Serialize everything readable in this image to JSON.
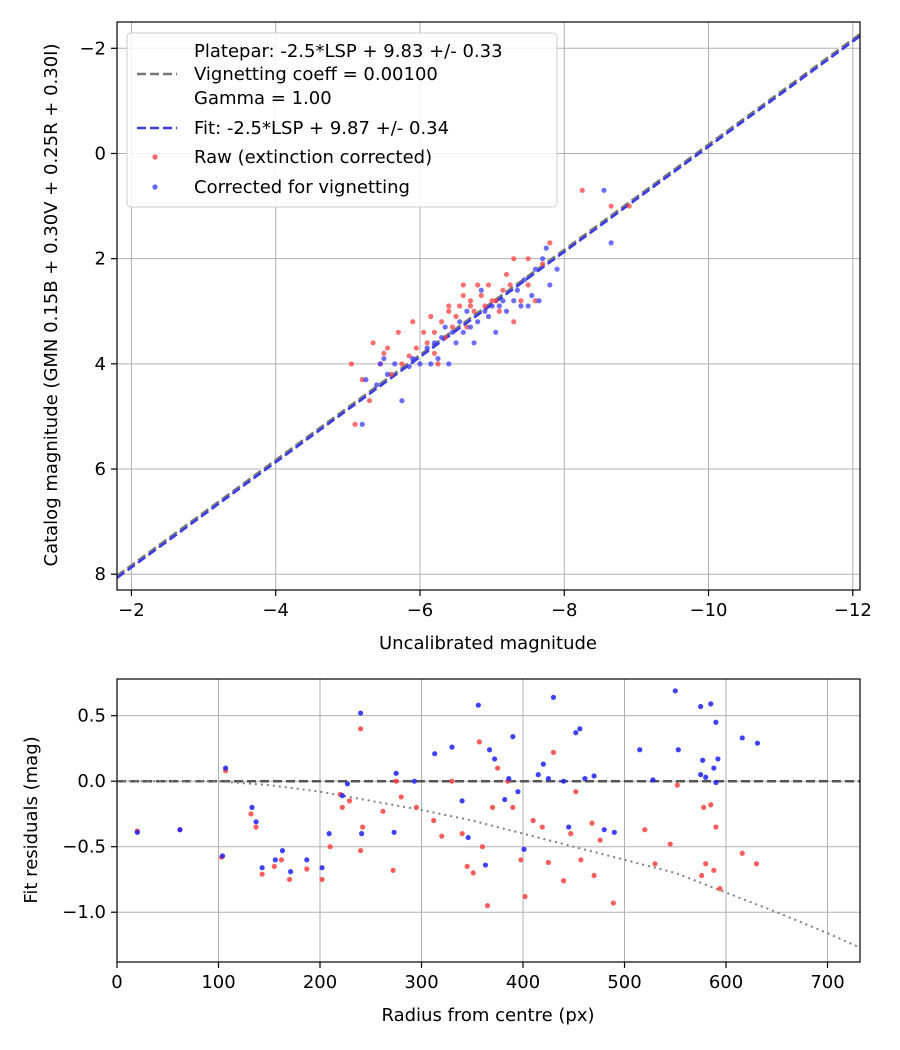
{
  "figure": {
    "width": 900,
    "height": 1050
  },
  "chart_data": [
    {
      "type": "scatter",
      "id": "calibration",
      "xlabel": "Uncalibrated magnitude",
      "ylabel": "Catalog magnitude (GMN 0.15B + 0.30V + 0.25R + 0.30I)",
      "xlim": [
        -1.8,
        -12.1
      ],
      "ylim": [
        8.3,
        -2.5
      ],
      "xticks": [
        -2,
        -4,
        -6,
        -8,
        -10,
        -12
      ],
      "xtick_labels": [
        "−2",
        "−4",
        "−6",
        "−8",
        "−10",
        "−12"
      ],
      "yticks": [
        -2,
        0,
        2,
        4,
        6,
        8
      ],
      "ytick_labels": [
        "−2",
        "0",
        "2",
        "4",
        "6",
        "8"
      ],
      "grid": true,
      "legend_position": "top-left",
      "lines": [
        {
          "name": "Platepar: -2.5*LSP + 9.83 +/- 0.33",
          "style": "solid",
          "color": "#ffffff",
          "x": [
            -1.8,
            -12.1
          ],
          "y": [
            8.03,
            -2.27
          ]
        },
        {
          "name": "Vignetting coeff = 0.00100",
          "style": "dashed",
          "color": "#777777",
          "x": [
            -1.8,
            -12.1
          ],
          "y": [
            8.03,
            -2.27
          ]
        },
        {
          "name": "Gamma = 1.00",
          "style": "none",
          "color": "#ffffff",
          "x": [],
          "y": []
        },
        {
          "name": "Fit: -2.5*LSP + 9.87 +/- 0.34",
          "style": "dashed",
          "color": "#3a3ae6",
          "x": [
            -1.8,
            -12.1
          ],
          "y": [
            8.07,
            -2.23
          ]
        }
      ],
      "series": [
        {
          "name": "Raw (extinction corrected)",
          "color": "#ff4040",
          "points": [
            [
              -5.1,
              5.15
            ],
            [
              -5.05,
              4.0
            ],
            [
              -5.2,
              4.3
            ],
            [
              -5.3,
              4.7
            ],
            [
              -5.35,
              3.6
            ],
            [
              -5.45,
              4.0
            ],
            [
              -5.5,
              3.8
            ],
            [
              -5.55,
              3.7
            ],
            [
              -5.6,
              4.2
            ],
            [
              -5.7,
              3.4
            ],
            [
              -5.75,
              4.0
            ],
            [
              -5.85,
              3.85
            ],
            [
              -5.9,
              3.2
            ],
            [
              -5.95,
              3.7
            ],
            [
              -6.05,
              3.4
            ],
            [
              -6.1,
              3.6
            ],
            [
              -6.15,
              3.1
            ],
            [
              -6.2,
              3.8
            ],
            [
              -6.2,
              3.4
            ],
            [
              -6.25,
              4.0
            ],
            [
              -6.3,
              3.2
            ],
            [
              -6.35,
              3.5
            ],
            [
              -6.4,
              3.0
            ],
            [
              -6.4,
              2.9
            ],
            [
              -6.45,
              3.3
            ],
            [
              -6.5,
              3.1
            ],
            [
              -6.55,
              2.9
            ],
            [
              -6.6,
              2.7
            ],
            [
              -6.6,
              2.5
            ],
            [
              -6.65,
              3.3
            ],
            [
              -6.7,
              2.9
            ],
            [
              -6.7,
              2.8
            ],
            [
              -6.75,
              3.0
            ],
            [
              -6.8,
              2.5
            ],
            [
              -6.85,
              2.7
            ],
            [
              -6.9,
              2.9
            ],
            [
              -6.95,
              2.5
            ],
            [
              -7.0,
              2.8
            ],
            [
              -7.05,
              2.8
            ],
            [
              -7.1,
              3.0
            ],
            [
              -7.15,
              2.6
            ],
            [
              -7.2,
              2.3
            ],
            [
              -7.25,
              2.5
            ],
            [
              -7.3,
              2.0
            ],
            [
              -7.3,
              3.2
            ],
            [
              -7.4,
              2.8
            ],
            [
              -7.5,
              2.0
            ],
            [
              -7.5,
              2.5
            ],
            [
              -7.6,
              2.8
            ],
            [
              -7.7,
              2.1
            ],
            [
              -7.8,
              1.7
            ],
            [
              -8.25,
              0.7
            ],
            [
              -8.65,
              1.0
            ],
            [
              -8.9,
              1.0
            ]
          ]
        },
        {
          "name": "Corrected for vignetting",
          "color": "#3c3cff",
          "points": [
            [
              -5.2,
              5.15
            ],
            [
              -5.25,
              4.3
            ],
            [
              -5.4,
              4.4
            ],
            [
              -5.45,
              4.0
            ],
            [
              -5.5,
              3.9
            ],
            [
              -5.55,
              4.2
            ],
            [
              -5.65,
              4.0
            ],
            [
              -5.75,
              4.7
            ],
            [
              -5.85,
              4.05
            ],
            [
              -5.9,
              3.9
            ],
            [
              -6.0,
              4.0
            ],
            [
              -6.1,
              3.7
            ],
            [
              -6.15,
              4.0
            ],
            [
              -6.2,
              3.6
            ],
            [
              -6.25,
              3.9
            ],
            [
              -6.3,
              3.5
            ],
            [
              -6.35,
              3.3
            ],
            [
              -6.4,
              4.0
            ],
            [
              -6.45,
              3.4
            ],
            [
              -6.5,
              3.6
            ],
            [
              -6.55,
              3.2
            ],
            [
              -6.6,
              3.4
            ],
            [
              -6.65,
              3.0
            ],
            [
              -6.7,
              3.3
            ],
            [
              -6.75,
              3.6
            ],
            [
              -6.8,
              3.2
            ],
            [
              -6.85,
              2.6
            ],
            [
              -6.9,
              3.0
            ],
            [
              -6.95,
              3.1
            ],
            [
              -7.0,
              2.9
            ],
            [
              -7.05,
              3.4
            ],
            [
              -7.1,
              2.9
            ],
            [
              -7.15,
              2.8
            ],
            [
              -7.2,
              3.0
            ],
            [
              -7.3,
              2.8
            ],
            [
              -7.35,
              2.6
            ],
            [
              -7.4,
              2.9
            ],
            [
              -7.45,
              2.4
            ],
            [
              -7.5,
              2.9
            ],
            [
              -7.55,
              2.7
            ],
            [
              -7.6,
              2.2
            ],
            [
              -7.65,
              2.8
            ],
            [
              -7.7,
              2.0
            ],
            [
              -7.75,
              1.8
            ],
            [
              -7.8,
              2.5
            ],
            [
              -7.9,
              2.2
            ],
            [
              -8.55,
              0.7
            ],
            [
              -8.65,
              1.7
            ]
          ]
        }
      ]
    },
    {
      "type": "scatter",
      "id": "residuals",
      "xlabel": "Radius from centre (px)",
      "ylabel": "Fit residuals (mag)",
      "xlim": [
        0,
        732
      ],
      "ylim": [
        -1.38,
        0.78
      ],
      "xticks": [
        0,
        100,
        200,
        300,
        400,
        500,
        600,
        700
      ],
      "xtick_labels": [
        "0",
        "100",
        "200",
        "300",
        "400",
        "500",
        "600",
        "700"
      ],
      "yticks": [
        0.5,
        0.0,
        -0.5,
        -1.0
      ],
      "ytick_labels": [
        "0.5",
        "0.0",
        "−0.5",
        "−1.0"
      ],
      "grid": true,
      "reference_lines": [
        {
          "name": "zero",
          "style": "dashed",
          "color": "#555555",
          "x": [
            0,
            732
          ],
          "y": [
            0,
            0
          ]
        }
      ],
      "vignetting_curve": {
        "style": "dotted",
        "color": "#808080",
        "x": [
          0,
          100,
          150,
          200,
          250,
          300,
          350,
          400,
          450,
          500,
          550,
          600,
          650,
          700,
          732
        ],
        "y": [
          0,
          0,
          -0.03,
          -0.08,
          -0.15,
          -0.22,
          -0.3,
          -0.4,
          -0.5,
          -0.6,
          -0.7,
          -0.85,
          -1.0,
          -1.16,
          -1.27
        ]
      },
      "series": [
        {
          "name": "Raw (extinction corrected)",
          "color": "#ff4040",
          "points": [
            [
              20,
              -0.38
            ],
            [
              62,
              -0.37
            ],
            [
              103,
              -0.58
            ],
            [
              107,
              0.08
            ],
            [
              132,
              -0.25
            ],
            [
              137,
              -0.35
            ],
            [
              143,
              -0.71
            ],
            [
              155,
              -0.65
            ],
            [
              162,
              -0.6
            ],
            [
              170,
              -0.75
            ],
            [
              187,
              -0.67
            ],
            [
              202,
              -0.75
            ],
            [
              210,
              -0.5
            ],
            [
              220,
              -0.1
            ],
            [
              222,
              -0.2
            ],
            [
              229,
              -0.15
            ],
            [
              240,
              0.4
            ],
            [
              240,
              -0.53
            ],
            [
              242,
              -0.35
            ],
            [
              262,
              -0.23
            ],
            [
              272,
              -0.68
            ],
            [
              275,
              0.0
            ],
            [
              280,
              -0.12
            ],
            [
              295,
              -0.2
            ],
            [
              312,
              -0.3
            ],
            [
              320,
              -0.42
            ],
            [
              330,
              0.0
            ],
            [
              340,
              -0.4
            ],
            [
              345,
              -0.65
            ],
            [
              351,
              -0.7
            ],
            [
              357,
              0.3
            ],
            [
              360,
              -0.5
            ],
            [
              365,
              -0.95
            ],
            [
              370,
              -0.2
            ],
            [
              375,
              0.1
            ],
            [
              385,
              0.0
            ],
            [
              390,
              -0.2
            ],
            [
              398,
              -0.6
            ],
            [
              402,
              -0.88
            ],
            [
              410,
              -0.3
            ],
            [
              419,
              -0.35
            ],
            [
              425,
              -0.62
            ],
            [
              430,
              0.22
            ],
            [
              440,
              -0.76
            ],
            [
              447,
              -0.4
            ],
            [
              452,
              -0.08
            ],
            [
              457,
              -0.6
            ],
            [
              468,
              -0.32
            ],
            [
              470,
              -0.72
            ],
            [
              476,
              -0.45
            ],
            [
              489,
              -0.93
            ],
            [
              520,
              -0.37
            ],
            [
              530,
              -0.63
            ],
            [
              545,
              -0.48
            ],
            [
              552,
              -0.03
            ],
            [
              576,
              -0.72
            ],
            [
              578,
              -0.2
            ],
            [
              580,
              -0.63
            ],
            [
              585,
              -0.18
            ],
            [
              588,
              -0.68
            ],
            [
              590,
              -0.35
            ],
            [
              594,
              -0.82
            ],
            [
              616,
              -0.55
            ],
            [
              630,
              -0.63
            ]
          ]
        },
        {
          "name": "Corrected for vignetting",
          "color": "#1e1eff",
          "points": [
            [
              20,
              -0.39
            ],
            [
              62,
              -0.37
            ],
            [
              104,
              -0.57
            ],
            [
              107,
              0.1
            ],
            [
              133,
              -0.2
            ],
            [
              137,
              -0.31
            ],
            [
              143,
              -0.66
            ],
            [
              156,
              -0.6
            ],
            [
              163,
              -0.53
            ],
            [
              171,
              -0.69
            ],
            [
              187,
              -0.6
            ],
            [
              202,
              -0.66
            ],
            [
              209,
              -0.4
            ],
            [
              222,
              -0.11
            ],
            [
              227,
              -0.02
            ],
            [
              240,
              0.52
            ],
            [
              241,
              -0.4
            ],
            [
              273,
              -0.39
            ],
            [
              275,
              0.06
            ],
            [
              293,
              0.0
            ],
            [
              313,
              0.21
            ],
            [
              330,
              0.26
            ],
            [
              340,
              -0.15
            ],
            [
              346,
              -0.43
            ],
            [
              356,
              0.58
            ],
            [
              363,
              -0.64
            ],
            [
              367,
              0.24
            ],
            [
              372,
              0.17
            ],
            [
              382,
              -0.14
            ],
            [
              386,
              0.02
            ],
            [
              390,
              0.34
            ],
            [
              395,
              -0.08
            ],
            [
              401,
              -0.52
            ],
            [
              415,
              0.05
            ],
            [
              420,
              0.13
            ],
            [
              425,
              0.02
            ],
            [
              430,
              0.64
            ],
            [
              440,
              0.0
            ],
            [
              445,
              -0.35
            ],
            [
              452,
              0.37
            ],
            [
              456,
              0.4
            ],
            [
              461,
              0.02
            ],
            [
              470,
              0.04
            ],
            [
              480,
              -0.37
            ],
            [
              490,
              -0.39
            ],
            [
              515,
              0.24
            ],
            [
              528,
              0.01
            ],
            [
              550,
              0.69
            ],
            [
              553,
              0.24
            ],
            [
              575,
              0.57
            ],
            [
              580,
              0.03
            ],
            [
              585,
              0.59
            ],
            [
              588,
              0.1
            ],
            [
              590,
              0.45
            ],
            [
              592,
              0.17
            ],
            [
              616,
              0.33
            ],
            [
              631,
              0.29
            ],
            [
              577,
              0.16
            ],
            [
              575,
              0.05
            ],
            [
              590,
              -0.01
            ]
          ]
        }
      ]
    }
  ]
}
